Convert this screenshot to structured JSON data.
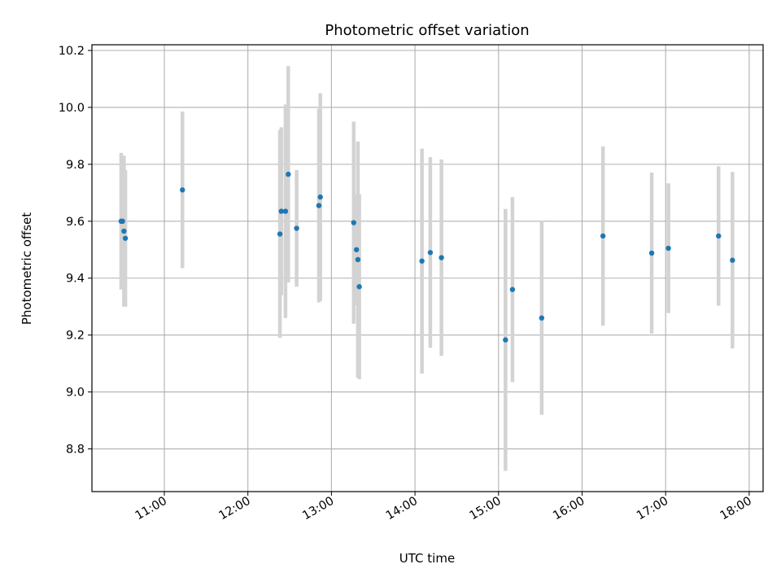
{
  "chart_data": {
    "type": "scatter",
    "title": "Photometric offset variation",
    "xlabel": "UTC time",
    "ylabel": "Photometric offset",
    "x_ticks": [
      "11:00",
      "12:00",
      "13:00",
      "14:00",
      "15:00",
      "16:00",
      "17:00",
      "18:00"
    ],
    "y_ticks": [
      "8.8",
      "9.0",
      "9.2",
      "9.4",
      "9.6",
      "9.8",
      "10.0",
      "10.2"
    ],
    "xlim": [
      "10:08",
      "18:10"
    ],
    "ylim": [
      8.65,
      10.22
    ],
    "grid": true,
    "colors": {
      "point": "#1f77b4",
      "errorbar": "#d3d3d3",
      "grid": "#b0b0b0"
    },
    "points": [
      {
        "x": "10:29",
        "y": 9.6,
        "err": 0.24
      },
      {
        "x": "10:30",
        "y": 9.6,
        "err": 0.23
      },
      {
        "x": "10:31",
        "y": 9.565,
        "err": 0.265
      },
      {
        "x": "10:32",
        "y": 9.54,
        "err": 0.24
      },
      {
        "x": "11:13",
        "y": 9.71,
        "err": 0.275
      },
      {
        "x": "12:23",
        "y": 9.555,
        "err": 0.365
      },
      {
        "x": "12:24",
        "y": 9.635,
        "err": 0.295
      },
      {
        "x": "12:27",
        "y": 9.635,
        "err": 0.375
      },
      {
        "x": "12:29",
        "y": 9.765,
        "err": 0.38
      },
      {
        "x": "12:35",
        "y": 9.575,
        "err": 0.205
      },
      {
        "x": "12:51",
        "y": 9.655,
        "err": 0.34
      },
      {
        "x": "12:52",
        "y": 9.685,
        "err": 0.365
      },
      {
        "x": "13:16",
        "y": 9.595,
        "err": 0.355
      },
      {
        "x": "13:18",
        "y": 9.5,
        "err": 0.195
      },
      {
        "x": "13:19",
        "y": 9.465,
        "err": 0.415
      },
      {
        "x": "13:20",
        "y": 9.37,
        "err": 0.325
      },
      {
        "x": "14:05",
        "y": 9.46,
        "err": 0.395
      },
      {
        "x": "14:11",
        "y": 9.49,
        "err": 0.335
      },
      {
        "x": "14:19",
        "y": 9.472,
        "err": 0.345
      },
      {
        "x": "15:05",
        "y": 9.183,
        "err": 0.46
      },
      {
        "x": "15:10",
        "y": 9.36,
        "err": 0.325
      },
      {
        "x": "15:31",
        "y": 9.26,
        "err": 0.34
      },
      {
        "x": "16:15",
        "y": 9.548,
        "err": 0.315
      },
      {
        "x": "16:50",
        "y": 9.488,
        "err": 0.283
      },
      {
        "x": "17:02",
        "y": 9.505,
        "err": 0.228
      },
      {
        "x": "17:38",
        "y": 9.548,
        "err": 0.245
      },
      {
        "x": "17:48",
        "y": 9.463,
        "err": 0.31
      }
    ]
  }
}
